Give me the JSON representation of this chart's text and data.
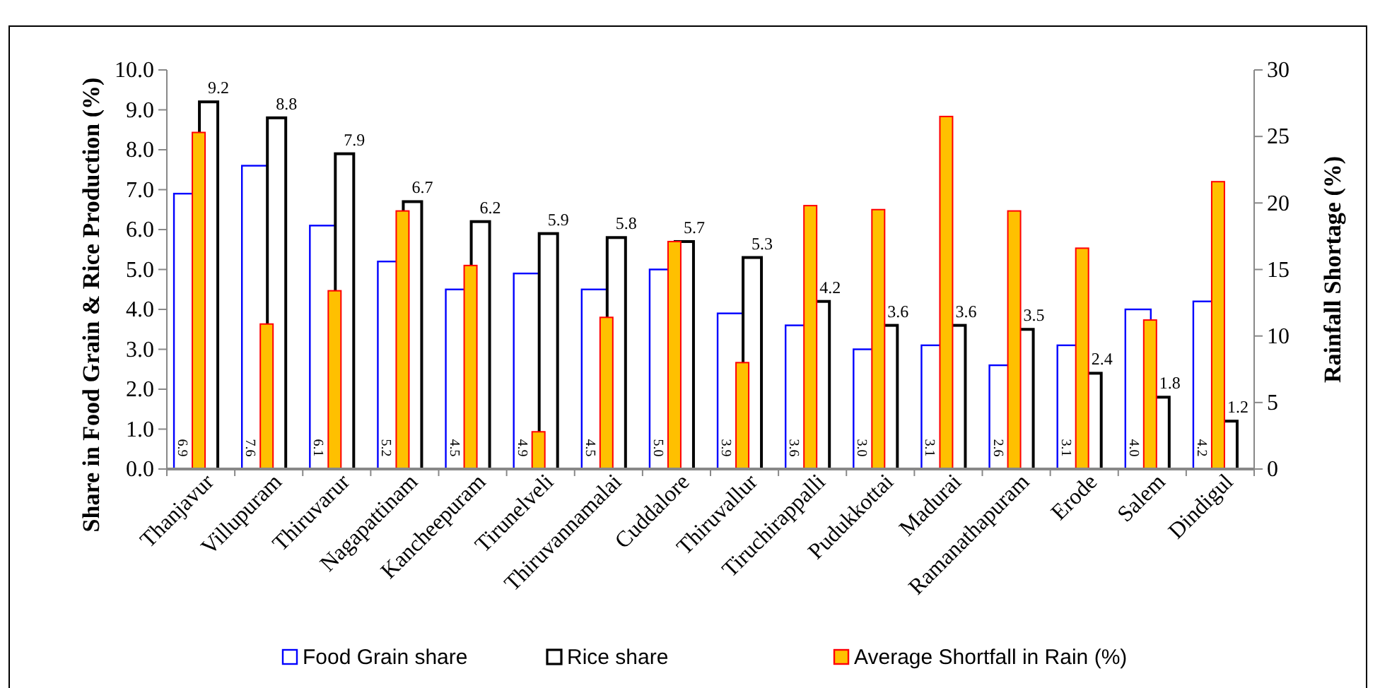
{
  "chart_data": {
    "type": "bar",
    "ylabel": "Share in Food Grain & Rice Production (%)",
    "y2label": "Rainfall Shortage (%)",
    "categories": [
      "Thanjavur",
      "Villupuram",
      "Thiruvarur",
      "Nagapattinam",
      "Kancheepuram",
      "Tirunelveli",
      "Thiruvannamalai",
      "Cuddalore",
      "Thiruvallur",
      "Tiruchirappalli",
      "Pudukkottai",
      "Madurai",
      "Ramanathapuram",
      "Erode",
      "Salem",
      "Dindigul"
    ],
    "series": [
      {
        "name": "Food Grain share",
        "color": "#0000ff",
        "values": [
          6.9,
          7.6,
          6.1,
          5.2,
          4.5,
          4.9,
          4.5,
          5.0,
          3.9,
          3.6,
          3.0,
          3.1,
          2.6,
          3.1,
          4.0,
          4.2
        ],
        "value_labels": [
          "6.9",
          "7.6",
          "6.1",
          "5.2",
          "4.5",
          "4.9",
          "4.5",
          "5.0",
          "3.9",
          "3.6",
          "3.0",
          "3.1",
          "2.6",
          "3.1",
          "4.0",
          "4.2"
        ]
      },
      {
        "name": "Rice share",
        "color": "#000000",
        "values": [
          9.2,
          8.8,
          7.9,
          6.7,
          6.2,
          5.9,
          5.8,
          5.7,
          5.3,
          4.2,
          3.6,
          3.6,
          3.5,
          2.4,
          1.8,
          1.2
        ],
        "value_labels": [
          "9.2",
          "8.8",
          "7.9",
          "6.7",
          "6.2",
          "5.9",
          "5.8",
          "5.7",
          "5.3",
          "4.2",
          "3.6",
          "3.6",
          "3.5",
          "2.4",
          "1.8",
          "1.2"
        ]
      },
      {
        "name": "Average Shortfall in Rain (%)",
        "color": "#ffc000",
        "axis": "y2",
        "values": [
          25.3,
          10.9,
          13.4,
          19.4,
          15.3,
          2.8,
          11.4,
          17.1,
          8.0,
          19.8,
          19.5,
          26.5,
          19.4,
          16.6,
          11.2,
          21.6
        ]
      }
    ],
    "ylim": [
      0,
      10
    ],
    "yticks": [
      {
        "value": 0,
        "label": "0.0"
      },
      {
        "value": 1,
        "label": "1.0"
      },
      {
        "value": 2,
        "label": "2.0"
      },
      {
        "value": 3,
        "label": "3.0"
      },
      {
        "value": 4,
        "label": "4.0"
      },
      {
        "value": 5,
        "label": "5.0"
      },
      {
        "value": 6,
        "label": "6.0"
      },
      {
        "value": 7,
        "label": "7.0"
      },
      {
        "value": 8,
        "label": "8.0"
      },
      {
        "value": 9,
        "label": "9.0"
      },
      {
        "value": 10,
        "label": "10.0"
      }
    ],
    "y2lim": [
      0,
      30
    ],
    "y2ticks": [
      0,
      5,
      10,
      15,
      20,
      25,
      30
    ],
    "legend": "bottom",
    "grid": false
  }
}
